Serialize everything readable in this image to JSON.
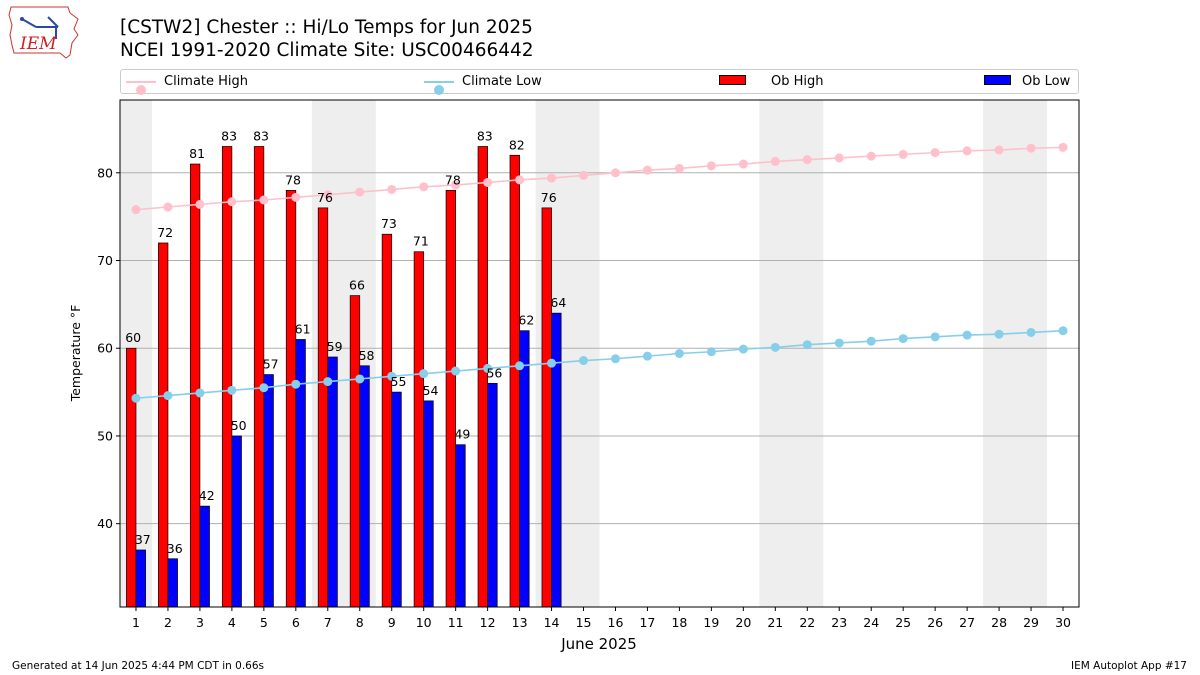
{
  "header": {
    "title_line1": "[CSTW2] Chester :: Hi/Lo Temps for Jun 2025",
    "title_line2": "NCEI 1991-2020 Climate Site: USC00466442",
    "logo_text": "IEM"
  },
  "legend": {
    "climate_high": "Climate High",
    "climate_low": "Climate Low",
    "ob_high": "Ob High",
    "ob_low": "Ob Low"
  },
  "footer": {
    "generated": "Generated at 14 Jun 2025 4:44 PM CDT in 0.66s",
    "app": "IEM Autoplot App #17"
  },
  "colors": {
    "ob_high": "#ff0000",
    "ob_low": "#0000ff",
    "climate_high": "#ffc0cb",
    "climate_low": "#87ceeb",
    "weekend_shade": "#eeeeee",
    "grid": "#b0b0b0"
  },
  "chart_data": {
    "type": "bar",
    "xlabel": "June 2025",
    "ylabel": "Temperature °F",
    "ylim": [
      30.5,
      88.3
    ],
    "xlim": [
      0.5,
      30.5
    ],
    "yticks": [
      40,
      50,
      60,
      70,
      80
    ],
    "grid": "horizontal",
    "legend_position": "top",
    "shaded_days": [
      [
        1
      ],
      [
        7,
        8
      ],
      [
        14,
        15
      ],
      [
        21,
        22
      ],
      [
        28,
        29
      ]
    ],
    "days": [
      1,
      2,
      3,
      4,
      5,
      6,
      7,
      8,
      9,
      10,
      11,
      12,
      13,
      14,
      15,
      16,
      17,
      18,
      19,
      20,
      21,
      22,
      23,
      24,
      25,
      26,
      27,
      28,
      29,
      30
    ],
    "ob_high": [
      60,
      72,
      81,
      83,
      83,
      78,
      76,
      66,
      73,
      71,
      78,
      83,
      82,
      76
    ],
    "ob_low": [
      37,
      36,
      42,
      50,
      57,
      61,
      59,
      58,
      55,
      54,
      49,
      56,
      62,
      64
    ],
    "climate_high": [
      75.8,
      76.1,
      76.4,
      76.7,
      76.9,
      77.2,
      77.5,
      77.8,
      78.1,
      78.4,
      78.6,
      78.9,
      79.2,
      79.4,
      79.7,
      80.0,
      80.3,
      80.5,
      80.8,
      81.0,
      81.3,
      81.5,
      81.7,
      81.9,
      82.1,
      82.3,
      82.5,
      82.6,
      82.8,
      82.9
    ],
    "climate_low": [
      54.3,
      54.6,
      54.9,
      55.2,
      55.5,
      55.9,
      56.2,
      56.5,
      56.8,
      57.1,
      57.4,
      57.7,
      58.0,
      58.3,
      58.6,
      58.8,
      59.1,
      59.4,
      59.6,
      59.9,
      60.1,
      60.4,
      60.6,
      60.8,
      61.1,
      61.3,
      61.5,
      61.6,
      61.8,
      62.0
    ]
  }
}
